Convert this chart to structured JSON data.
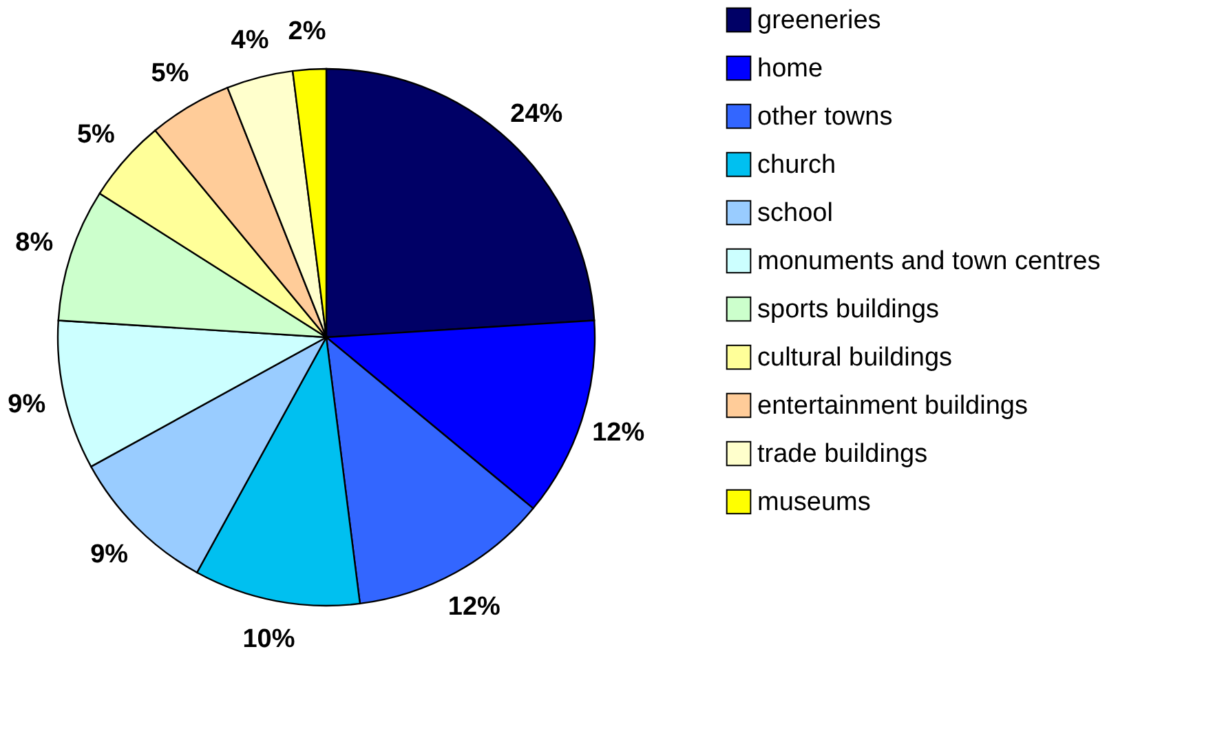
{
  "chart_data": {
    "type": "pie",
    "categories": [
      "greeneries",
      "home",
      "other towns",
      "church",
      "school",
      "monuments and town centres",
      "sports buildings",
      "cultural buildings",
      "entertainment buildings",
      "trade buildings",
      "museums"
    ],
    "values": [
      24,
      12,
      12,
      10,
      9,
      9,
      8,
      5,
      5,
      4,
      2
    ],
    "colors": [
      "#000066",
      "#0000ff",
      "#3366ff",
      "#00c0f0",
      "#99ccff",
      "#ccffff",
      "#ccffcc",
      "#ffff99",
      "#ffcc99",
      "#ffffcc",
      "#ffff00"
    ],
    "value_labels": [
      "24%",
      "12%",
      "12%",
      "10%",
      "9%",
      "9%",
      "8%",
      "5%",
      "5%",
      "4%",
      "2%"
    ],
    "legend": "right"
  }
}
